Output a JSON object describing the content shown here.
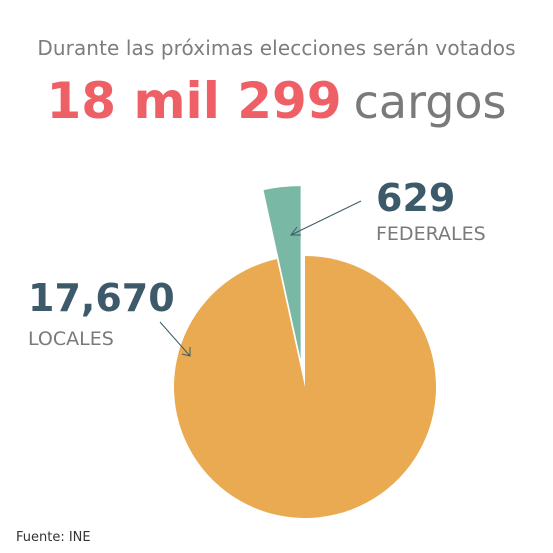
{
  "header": {
    "subtitle": "Durante las próximas elecciones serán votados",
    "total": "18 mil 299",
    "unit": "cargos"
  },
  "labels": {
    "federal_value": "629",
    "federal_label": "FEDERALES",
    "local_value": "17,670",
    "local_label": "LOCALES"
  },
  "source": "Fuente: INE",
  "colors": {
    "local": "#e9aa52",
    "federal": "#79b8a4",
    "accent": "#ee5f66",
    "label_number": "#3d5a6a"
  },
  "chart_data": {
    "type": "pie",
    "title": "",
    "slices": [
      {
        "name": "FEDERALES",
        "value": 629,
        "exploded": true
      },
      {
        "name": "LOCALES",
        "value": 17670,
        "exploded": false
      }
    ]
  }
}
